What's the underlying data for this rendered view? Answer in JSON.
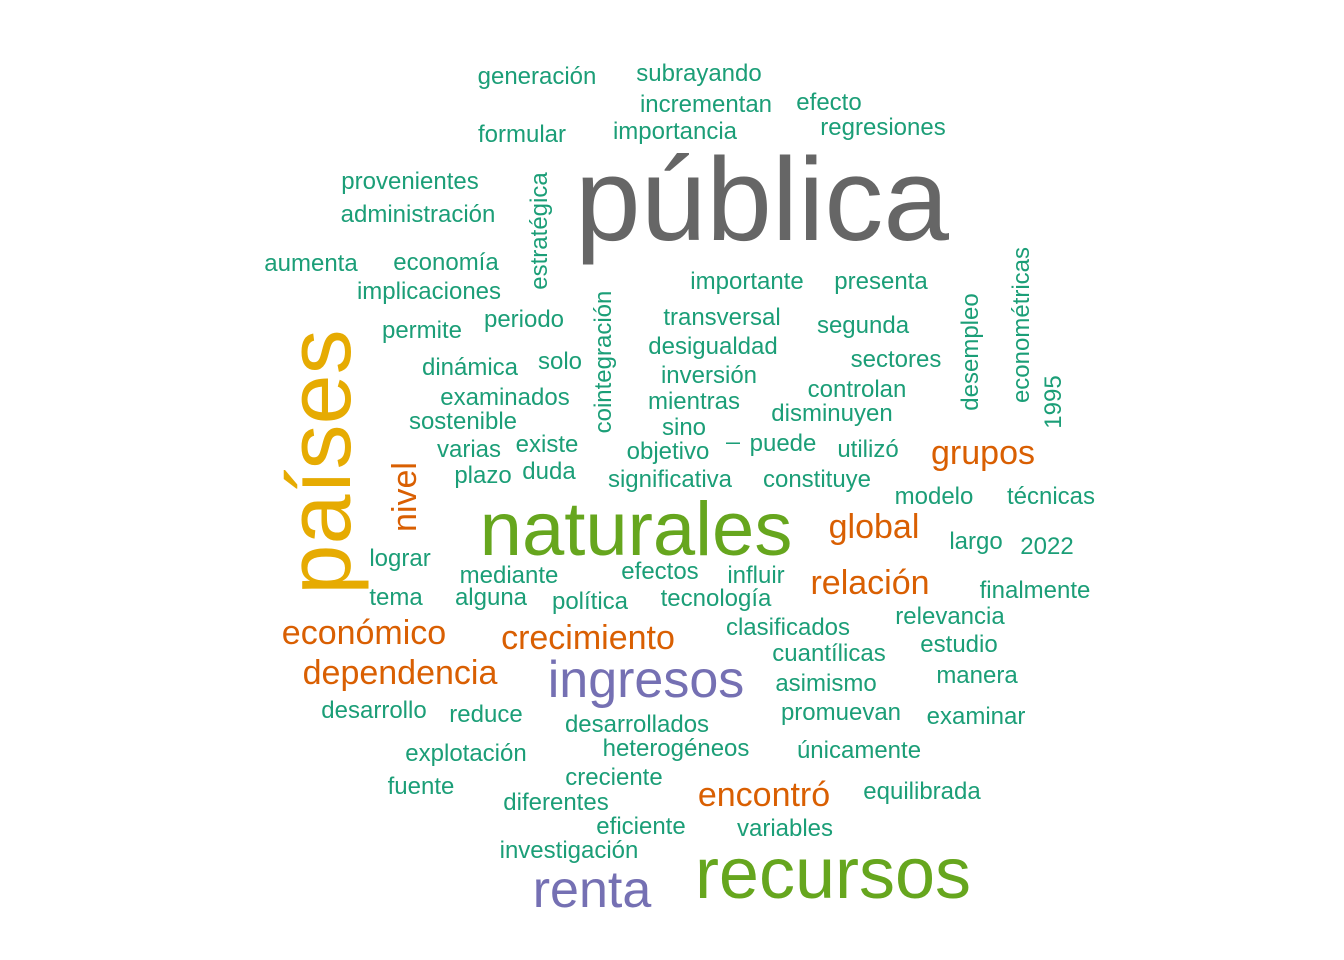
{
  "palette": {
    "teal": "#1b9e77",
    "gray": "#666666",
    "mustard": "#e6ab02",
    "green": "#66a61e",
    "orange": "#d95f02",
    "purple": "#7570b3"
  },
  "words": [
    {
      "text": "pública",
      "color": "#666666",
      "rank": 1
    },
    {
      "text": "países",
      "color": "#e6ab02",
      "rank": 2,
      "vertical": true
    },
    {
      "text": "naturales",
      "color": "#66a61e",
      "rank": 3
    },
    {
      "text": "recursos",
      "color": "#66a61e",
      "rank": 3
    },
    {
      "text": "ingresos",
      "color": "#7570b3",
      "rank": 4
    },
    {
      "text": "renta",
      "color": "#7570b3",
      "rank": 4
    },
    {
      "text": "crecimiento",
      "color": "#d95f02",
      "rank": 5
    },
    {
      "text": "dependencia",
      "color": "#d95f02",
      "rank": 5
    },
    {
      "text": "económico",
      "color": "#d95f02",
      "rank": 5
    },
    {
      "text": "encontró",
      "color": "#d95f02",
      "rank": 5
    },
    {
      "text": "relación",
      "color": "#d95f02",
      "rank": 5
    },
    {
      "text": "global",
      "color": "#d95f02",
      "rank": 5
    },
    {
      "text": "grupos",
      "color": "#d95f02",
      "rank": 5
    },
    {
      "text": "nivel",
      "color": "#d95f02",
      "rank": 5,
      "vertical": true
    },
    {
      "text": "generación",
      "color": "#1b9e77",
      "rank": 6
    },
    {
      "text": "subrayando",
      "color": "#1b9e77",
      "rank": 6
    },
    {
      "text": "incrementan",
      "color": "#1b9e77",
      "rank": 6
    },
    {
      "text": "efecto",
      "color": "#1b9e77",
      "rank": 6
    },
    {
      "text": "formular",
      "color": "#1b9e77",
      "rank": 6
    },
    {
      "text": "importancia",
      "color": "#1b9e77",
      "rank": 6
    },
    {
      "text": "regresiones",
      "color": "#1b9e77",
      "rank": 6
    },
    {
      "text": "provenientes",
      "color": "#1b9e77",
      "rank": 6
    },
    {
      "text": "administración",
      "color": "#1b9e77",
      "rank": 6
    },
    {
      "text": "estratégica",
      "color": "#1b9e77",
      "rank": 6,
      "vertical": true
    },
    {
      "text": "aumenta",
      "color": "#1b9e77",
      "rank": 6
    },
    {
      "text": "economía",
      "color": "#1b9e77",
      "rank": 6
    },
    {
      "text": "implicaciones",
      "color": "#1b9e77",
      "rank": 6
    },
    {
      "text": "importante",
      "color": "#1b9e77",
      "rank": 6
    },
    {
      "text": "presenta",
      "color": "#1b9e77",
      "rank": 6
    },
    {
      "text": "econométricas",
      "color": "#1b9e77",
      "rank": 6,
      "vertical": true
    },
    {
      "text": "cointegración",
      "color": "#1b9e77",
      "rank": 6,
      "vertical": true
    },
    {
      "text": "desempleo",
      "color": "#1b9e77",
      "rank": 6,
      "vertical": true
    },
    {
      "text": "permite",
      "color": "#1b9e77",
      "rank": 6
    },
    {
      "text": "periodo",
      "color": "#1b9e77",
      "rank": 6
    },
    {
      "text": "transversal",
      "color": "#1b9e77",
      "rank": 6
    },
    {
      "text": "segunda",
      "color": "#1b9e77",
      "rank": 6
    },
    {
      "text": "desigualdad",
      "color": "#1b9e77",
      "rank": 6
    },
    {
      "text": "sectores",
      "color": "#1b9e77",
      "rank": 6
    },
    {
      "text": "dinámica",
      "color": "#1b9e77",
      "rank": 6
    },
    {
      "text": "solo",
      "color": "#1b9e77",
      "rank": 6
    },
    {
      "text": "inversión",
      "color": "#1b9e77",
      "rank": 6
    },
    {
      "text": "controlan",
      "color": "#1b9e77",
      "rank": 6
    },
    {
      "text": "1995",
      "color": "#1b9e77",
      "rank": 6,
      "vertical": true
    },
    {
      "text": "examinados",
      "color": "#1b9e77",
      "rank": 6
    },
    {
      "text": "mientras",
      "color": "#1b9e77",
      "rank": 6
    },
    {
      "text": "disminuyen",
      "color": "#1b9e77",
      "rank": 6
    },
    {
      "text": "sostenible",
      "color": "#1b9e77",
      "rank": 6
    },
    {
      "text": "sino",
      "color": "#1b9e77",
      "rank": 6
    },
    {
      "text": "_",
      "color": "#1b9e77",
      "rank": 6
    },
    {
      "text": "puede",
      "color": "#1b9e77",
      "rank": 6
    },
    {
      "text": "varias",
      "color": "#1b9e77",
      "rank": 6
    },
    {
      "text": "existe",
      "color": "#1b9e77",
      "rank": 6
    },
    {
      "text": "objetivo",
      "color": "#1b9e77",
      "rank": 6
    },
    {
      "text": "utilizó",
      "color": "#1b9e77",
      "rank": 6
    },
    {
      "text": "plazo",
      "color": "#1b9e77",
      "rank": 6
    },
    {
      "text": "duda",
      "color": "#1b9e77",
      "rank": 6
    },
    {
      "text": "significativa",
      "color": "#1b9e77",
      "rank": 6
    },
    {
      "text": "constituye",
      "color": "#1b9e77",
      "rank": 6
    },
    {
      "text": "modelo",
      "color": "#1b9e77",
      "rank": 6
    },
    {
      "text": "técnicas",
      "color": "#1b9e77",
      "rank": 6
    },
    {
      "text": "largo",
      "color": "#1b9e77",
      "rank": 6
    },
    {
      "text": "2022",
      "color": "#1b9e77",
      "rank": 6
    },
    {
      "text": "lograr",
      "color": "#1b9e77",
      "rank": 6
    },
    {
      "text": "mediante",
      "color": "#1b9e77",
      "rank": 6
    },
    {
      "text": "efectos",
      "color": "#1b9e77",
      "rank": 6
    },
    {
      "text": "influir",
      "color": "#1b9e77",
      "rank": 6
    },
    {
      "text": "finalmente",
      "color": "#1b9e77",
      "rank": 6
    },
    {
      "text": "tema",
      "color": "#1b9e77",
      "rank": 6
    },
    {
      "text": "alguna",
      "color": "#1b9e77",
      "rank": 6
    },
    {
      "text": "política",
      "color": "#1b9e77",
      "rank": 6
    },
    {
      "text": "tecnología",
      "color": "#1b9e77",
      "rank": 6
    },
    {
      "text": "relevancia",
      "color": "#1b9e77",
      "rank": 6
    },
    {
      "text": "clasificados",
      "color": "#1b9e77",
      "rank": 6
    },
    {
      "text": "estudio",
      "color": "#1b9e77",
      "rank": 6
    },
    {
      "text": "cuantílicas",
      "color": "#1b9e77",
      "rank": 6
    },
    {
      "text": "manera",
      "color": "#1b9e77",
      "rank": 6
    },
    {
      "text": "asimismo",
      "color": "#1b9e77",
      "rank": 6
    },
    {
      "text": "desarrollo",
      "color": "#1b9e77",
      "rank": 6
    },
    {
      "text": "reduce",
      "color": "#1b9e77",
      "rank": 6
    },
    {
      "text": "promuevan",
      "color": "#1b9e77",
      "rank": 6
    },
    {
      "text": "examinar",
      "color": "#1b9e77",
      "rank": 6
    },
    {
      "text": "desarrollados",
      "color": "#1b9e77",
      "rank": 6
    },
    {
      "text": "explotación",
      "color": "#1b9e77",
      "rank": 6
    },
    {
      "text": "heterogéneos",
      "color": "#1b9e77",
      "rank": 6
    },
    {
      "text": "únicamente",
      "color": "#1b9e77",
      "rank": 6
    },
    {
      "text": "creciente",
      "color": "#1b9e77",
      "rank": 6
    },
    {
      "text": "fuente",
      "color": "#1b9e77",
      "rank": 6
    },
    {
      "text": "equilibrada",
      "color": "#1b9e77",
      "rank": 6
    },
    {
      "text": "diferentes",
      "color": "#1b9e77",
      "rank": 6
    },
    {
      "text": "eficiente",
      "color": "#1b9e77",
      "rank": 6
    },
    {
      "text": "variables",
      "color": "#1b9e77",
      "rank": 6
    },
    {
      "text": "investigación",
      "color": "#1b9e77",
      "rank": 6
    }
  ]
}
